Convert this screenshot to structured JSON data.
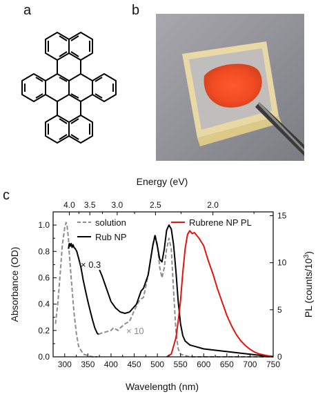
{
  "panels": {
    "a": "a",
    "b": "b",
    "c": "c"
  },
  "chart_data": {
    "type": "line",
    "xlabel": "Wavelength (nm)",
    "top_xlabel": "Energy (eV)",
    "ylabel_left": "Absorbance (OD)",
    "ylabel_right_main": "PL (counts/10",
    "ylabel_right_sup": "3",
    "ylabel_right_close": ")",
    "xlim": [
      275,
      750
    ],
    "ylim_left": [
      0,
      1.1
    ],
    "ylim_right": [
      0,
      15.4
    ],
    "x_ticks": [
      300,
      350,
      400,
      450,
      500,
      550,
      600,
      650,
      700,
      750
    ],
    "y_ticks_left": [
      "0.0",
      "0.2",
      "0.4",
      "0.6",
      "0.8",
      "1.0"
    ],
    "y_ticks_right": [
      0,
      5,
      10,
      15
    ],
    "top_ticks": [
      "4.0",
      "3.5",
      "3.0",
      "2.5",
      "2.0"
    ],
    "top_tick_values": [
      4.0,
      3.5,
      3.0,
      2.5,
      2.0
    ],
    "legend": {
      "solution": "solution",
      "rub_np": "Rub NP",
      "pl": "Rubrene NP PL"
    },
    "annotations": {
      "np_scale": "× 0.3",
      "sol_scale": "× 10"
    },
    "colors": {
      "solution": "#8c8c8c",
      "rub_np": "#000000",
      "pl": "#e3120b"
    },
    "series": [
      {
        "name": "solution",
        "x": [
          280,
          285,
          290,
          295,
          300,
          303,
          305,
          308,
          310,
          315,
          320,
          325,
          330,
          340,
          350,
          360,
          370,
          373,
          380,
          390,
          400,
          405,
          410,
          415,
          420,
          430,
          440,
          450,
          460,
          465,
          470,
          480,
          490,
          495,
          500,
          505,
          510,
          515,
          520,
          525,
          530,
          535,
          540,
          545,
          550,
          560,
          570,
          600,
          650,
          700,
          750
        ],
        "y": [
          0.25,
          0.4,
          0.62,
          0.85,
          0.98,
          1.02,
          1.0,
          0.9,
          0.78,
          0.55,
          0.34,
          0.18,
          0.08,
          0.02,
          0.01,
          0.0,
          0.0,
          0.17,
          0.18,
          0.19,
          0.2,
          0.22,
          0.21,
          0.2,
          0.22,
          0.25,
          0.27,
          0.35,
          0.42,
          0.44,
          0.45,
          0.62,
          0.85,
          0.93,
          0.85,
          0.68,
          0.6,
          0.68,
          0.82,
          0.9,
          0.82,
          0.5,
          0.2,
          0.06,
          0.02,
          0.01,
          0.0,
          0.0,
          0.0,
          0.0,
          0.0
        ]
      },
      {
        "name": "Rub NP",
        "x": [
          308,
          310,
          312,
          314,
          316,
          318,
          320,
          323,
          326,
          330,
          335,
          340,
          345,
          350,
          355,
          360,
          365,
          370,
          373,
          375,
          380,
          390,
          400,
          410,
          420,
          430,
          440,
          450,
          455,
          460,
          465,
          470,
          480,
          490,
          495,
          500,
          505,
          510,
          515,
          520,
          525,
          530,
          535,
          540,
          545,
          550,
          555,
          560,
          570,
          580,
          600,
          650,
          700,
          750
        ],
        "y": [
          0.82,
          0.86,
          0.84,
          0.86,
          0.83,
          0.85,
          0.83,
          0.82,
          0.8,
          0.75,
          0.68,
          0.58,
          0.5,
          0.42,
          0.35,
          0.28,
          0.22,
          0.18,
          0.17,
          0.66,
          0.62,
          0.52,
          0.42,
          0.37,
          0.34,
          0.33,
          0.34,
          0.38,
          0.4,
          0.45,
          0.5,
          0.52,
          0.62,
          0.84,
          0.92,
          0.84,
          0.74,
          0.72,
          0.82,
          0.96,
          1.0,
          0.97,
          0.85,
          0.65,
          0.42,
          0.25,
          0.16,
          0.12,
          0.09,
          0.08,
          0.06,
          0.04,
          0.02,
          0.0
        ]
      },
      {
        "name": "Rubrene NP PL",
        "x": [
          520,
          530,
          540,
          545,
          550,
          555,
          560,
          565,
          570,
          575,
          580,
          585,
          590,
          595,
          600,
          605,
          610,
          620,
          630,
          640,
          650,
          660,
          670,
          680,
          690,
          700,
          710,
          720,
          730,
          740,
          750
        ],
        "y": [
          0.0,
          0.3,
          2.0,
          3.8,
          6.0,
          9.0,
          11.5,
          13.0,
          13.4,
          13.1,
          13.2,
          12.9,
          12.6,
          12.2,
          11.8,
          11.0,
          10.2,
          8.8,
          7.2,
          5.8,
          4.4,
          3.3,
          2.4,
          1.7,
          1.2,
          0.8,
          0.5,
          0.3,
          0.2,
          0.1,
          0.05
        ]
      }
    ]
  }
}
